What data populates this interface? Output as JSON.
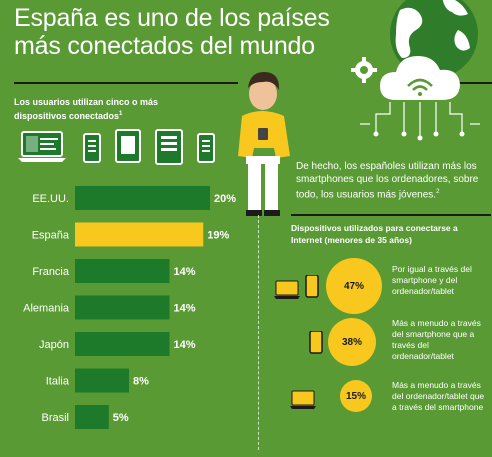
{
  "title_line1": "España es uno de los países",
  "title_line2": "más conectados del mundo",
  "subtitle_pre": "Los usuarios utilizan ",
  "subtitle_bold": "cinco",
  "subtitle_post": " o más dispositivos conectados",
  "subtitle_sup": "1",
  "right_text": "De hecho, los españoles utilizan más los smartphones que los ordenadores, sobre todo, los usuarios más jóvenes.",
  "right_text_sup": "2",
  "right_label": "Dispositivos utilizados para conectarse a Internet (menores de 35 años)",
  "colors": {
    "bar_default": "#1d7a2a",
    "bar_highlight": "#f8c81f",
    "background": "#5a9a35",
    "dark": "#1b1b1b"
  },
  "chart_data": {
    "type": "bar",
    "orientation": "horizontal",
    "categories": [
      "EE.UU.",
      "España",
      "Francia",
      "Alemania",
      "Japón",
      "Italia",
      "Brasil"
    ],
    "values": [
      20,
      19,
      14,
      14,
      14,
      8,
      5
    ],
    "value_labels": [
      "20%",
      "19%",
      "14%",
      "14%",
      "14%",
      "8%",
      "5%"
    ],
    "highlight": "España",
    "unit": "%",
    "xlim": [
      0,
      20
    ]
  },
  "device_usage": [
    {
      "value": 47,
      "label": "47%",
      "text": "Por igual a través del smartphone y del ordenador/tablet",
      "devices": [
        "laptop-icon",
        "smartphone-icon"
      ]
    },
    {
      "value": 38,
      "label": "38%",
      "text": "Más a menudo a través del smartphone que a través del ordenador/tablet",
      "devices": [
        "smartphone-icon"
      ]
    },
    {
      "value": 15,
      "label": "15%",
      "text": "Más a menudo a través del ordenador/tablet que a través del smartphone",
      "devices": [
        "laptop-icon"
      ]
    }
  ]
}
